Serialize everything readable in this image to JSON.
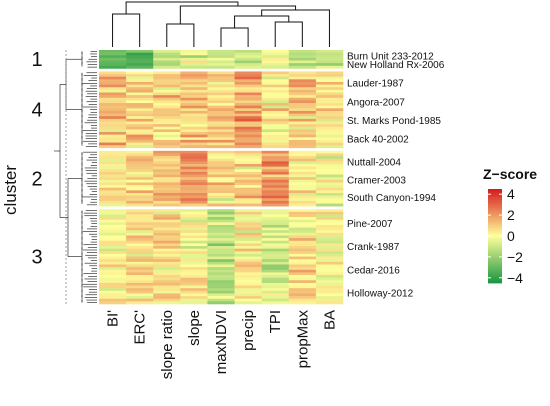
{
  "chart_data": {
    "type": "heatmap",
    "title": "",
    "y_title": "cluster",
    "columns": [
      "BI'",
      "ERC'",
      "slope ratio",
      "slope",
      "maxNDVI",
      "precip",
      "TPI",
      "propMax",
      "BA"
    ],
    "clusters": [
      {
        "id": "1",
        "rows": 7
      },
      {
        "id": "4",
        "rows": 29
      },
      {
        "id": "2",
        "rows": 21
      },
      {
        "id": "3",
        "rows": 36
      }
    ],
    "row_labels": [
      {
        "text": "Burn Unit 233-2012",
        "cluster": "1"
      },
      {
        "text": "New Holland Rx-2006",
        "cluster": "1"
      },
      {
        "text": "Lauder-1987",
        "cluster": "4"
      },
      {
        "text": "Angora-2007",
        "cluster": "4"
      },
      {
        "text": "St. Marks Pond-1985",
        "cluster": "4"
      },
      {
        "text": "Back 40-2002",
        "cluster": "4"
      },
      {
        "text": "Nuttall-2004",
        "cluster": "2"
      },
      {
        "text": "Cramer-2003",
        "cluster": "2"
      },
      {
        "text": "South Canyon-1994",
        "cluster": "2"
      },
      {
        "text": "Pine-2007",
        "cluster": "3"
      },
      {
        "text": "Crank-1987",
        "cluster": "3"
      },
      {
        "text": "Cedar-2016",
        "cluster": "3"
      },
      {
        "text": "Holloway-2012",
        "cluster": "3"
      }
    ],
    "cluster_profile": {
      "1": [
        -3.0,
        -3.5,
        -1.0,
        -0.8,
        -1.2,
        -1.0,
        -0.5,
        -1.3,
        -1.0
      ],
      "4": [
        1.2,
        0.8,
        0.6,
        1.0,
        1.0,
        1.8,
        0.4,
        0.9,
        0.5
      ],
      "2": [
        0.6,
        0.7,
        1.1,
        2.3,
        0.5,
        0.7,
        2.2,
        0.4,
        -0.2
      ],
      "3": [
        0.3,
        0.4,
        0.6,
        0.2,
        -1.4,
        0.1,
        -0.6,
        0.3,
        0.0
      ]
    },
    "legend": {
      "title": "Z−score",
      "range": [
        -4.5,
        4.5
      ],
      "ticks": [
        "4",
        "2",
        "0",
        "−2",
        "−4"
      ],
      "tick_values": [
        4,
        2,
        0,
        -2,
        -4
      ],
      "colors": {
        "low": "#1a9641",
        "mid": "#ffff9a",
        "high": "#d7191c"
      }
    }
  }
}
